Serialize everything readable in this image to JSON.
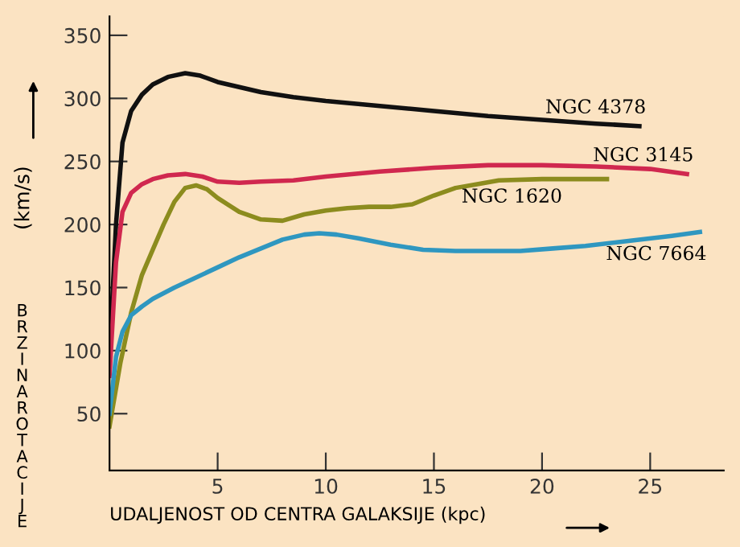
{
  "chart_data": {
    "type": "line",
    "xlabel": "UDALJENOST OD CENTRA GALAKSIJE (kpc)",
    "ylabel": "(km/s)",
    "annotations": [
      "BRZINA ROTACIJE"
    ],
    "xlim": [
      0,
      28.4
    ],
    "ylim": [
      5,
      365
    ],
    "xticks": [
      5,
      10,
      15,
      20,
      25
    ],
    "yticks": [
      50,
      100,
      150,
      200,
      250,
      300,
      350
    ],
    "grid": false,
    "legend": false,
    "marker": "none",
    "line_style": "solid",
    "series": [
      {
        "name": "NGC 4378",
        "color": "#111111",
        "x": [
          0,
          0.3,
          0.6,
          1,
          1.5,
          2,
          2.7,
          3.5,
          4.2,
          5,
          6,
          7,
          8.5,
          10,
          12.5,
          15,
          17.5,
          20,
          22.5,
          24.5
        ],
        "values": [
          95,
          200,
          265,
          290,
          303,
          311,
          317,
          320,
          318,
          313,
          309,
          305,
          301,
          298,
          294,
          290,
          286,
          283,
          280,
          278
        ]
      },
      {
        "name": "NGC 3145",
        "color": "#d0284f",
        "x": [
          0,
          0.3,
          0.6,
          1,
          1.5,
          2,
          2.7,
          3.5,
          4.3,
          5,
          6,
          7,
          8.5,
          10,
          12.5,
          15,
          17.5,
          20,
          22.5,
          25,
          26.7
        ],
        "values": [
          80,
          170,
          210,
          225,
          232,
          236,
          239,
          240,
          238,
          234,
          233,
          234,
          235,
          238,
          242,
          245,
          247,
          247,
          246,
          244,
          240
        ]
      },
      {
        "name": "NGC 1620",
        "color": "#8c8c1e",
        "x": [
          0,
          0.5,
          1,
          1.5,
          2,
          2.5,
          3,
          3.5,
          4,
          4.5,
          5,
          6,
          7,
          8,
          9,
          10,
          11,
          12,
          13,
          14,
          15,
          16,
          17,
          18,
          20,
          22,
          23
        ],
        "values": [
          40,
          90,
          130,
          160,
          180,
          200,
          218,
          229,
          231,
          228,
          221,
          210,
          204,
          203,
          208,
          211,
          213,
          214,
          214,
          216,
          223,
          229,
          232,
          235,
          236,
          236,
          236
        ]
      },
      {
        "name": "NGC 7664",
        "color": "#2f97c0",
        "x": [
          0,
          0.3,
          0.6,
          1,
          1.5,
          2,
          3,
          4,
          5,
          6,
          7,
          8,
          9,
          9.7,
          10.5,
          11.5,
          13,
          14.5,
          16,
          17.5,
          19,
          20.5,
          22,
          24,
          26,
          27.3
        ],
        "values": [
          50,
          95,
          115,
          128,
          135,
          141,
          150,
          158,
          166,
          174,
          181,
          188,
          192,
          193,
          192,
          189,
          184,
          180,
          179,
          179,
          179,
          181,
          183,
          187,
          191,
          194
        ]
      }
    ]
  }
}
